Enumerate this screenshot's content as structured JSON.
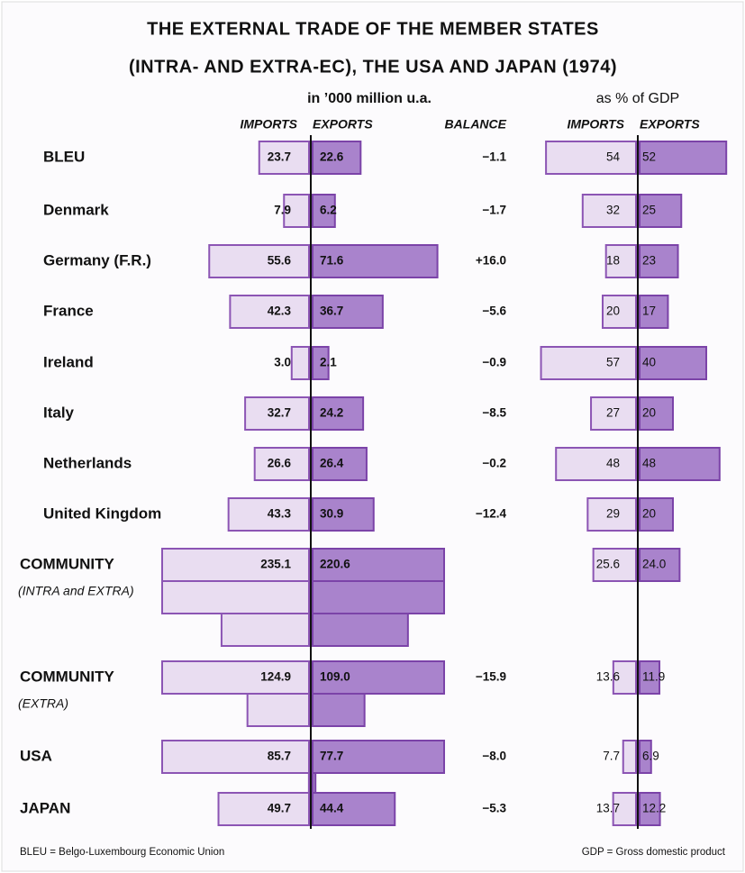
{
  "chart_data": {
    "type": "diverging-bar",
    "title": "THE EXTERNAL TRADE OF THE MEMBER STATES",
    "subtitle": "(INTRA- AND EXTRA-EC), THE USA AND JAPAN   (1974)",
    "unit_label": "in ’000 million u.a.",
    "gdp_label": "as % of GDP",
    "categories": [
      "BLEU",
      "Denmark",
      "Germany (F.R.)",
      "France",
      "Ireland",
      "Italy",
      "Netherlands",
      "United Kingdom",
      "COMMUNITY",
      "COMMUNITY",
      "USA",
      "JAPAN"
    ],
    "category_notes": [
      null,
      null,
      null,
      null,
      null,
      null,
      null,
      null,
      "(INTRA and EXTRA)",
      "(EXTRA)",
      null,
      null
    ],
    "series": [
      {
        "name": "IMPORTS",
        "color": "#e9ddf1",
        "values": [
          23.7,
          7.9,
          55.6,
          42.3,
          3.0,
          32.7,
          26.6,
          43.3,
          235.1,
          124.9,
          85.7,
          49.7
        ],
        "value_labels": [
          "23.7",
          "7.9",
          "55.6",
          "42.3",
          "3.0",
          "32.7",
          "26.6",
          "43.3",
          "235.1",
          "124.9",
          "85.7",
          "49.7"
        ]
      },
      {
        "name": "EXPORTS",
        "color": "#a983cc",
        "values": [
          22.6,
          6.2,
          71.6,
          36.7,
          2.1,
          24.2,
          26.4,
          30.9,
          220.6,
          109.0,
          77.7,
          44.4
        ],
        "value_labels": [
          "22.6",
          "6.2",
          "71.6",
          "36.7",
          "2.1",
          "24.2",
          "26.4",
          "30.9",
          "220.6",
          "109.0",
          "77.7",
          "44.4"
        ]
      },
      {
        "name": "BALANCE",
        "values": [
          -1.1,
          -1.7,
          16.0,
          -5.6,
          -0.9,
          -8.5,
          -0.2,
          -12.4,
          null,
          -15.9,
          -8.0,
          -5.3
        ],
        "value_labels": [
          "−1.1",
          "−1.7",
          "+16.0",
          "−5.6",
          "−0.9",
          "−8.5",
          "−0.2",
          "−12.4",
          null,
          "−15.9",
          "−8.0",
          "−5.3"
        ]
      },
      {
        "name": "IMPORTS",
        "color": "#e9ddf1",
        "values": [
          54,
          32,
          18,
          20,
          57,
          27,
          48,
          29,
          25.6,
          13.6,
          7.7,
          13.7
        ],
        "value_labels": [
          "54",
          "32",
          "18",
          "20",
          "57",
          "27",
          "48",
          "29",
          "25.6",
          "13.6",
          "7.7",
          "13.7"
        ]
      },
      {
        "name": "EXPORTS",
        "color": "#a983cc",
        "values": [
          52,
          25,
          23,
          17,
          40,
          20,
          48,
          20,
          24.0,
          11.9,
          6.9,
          12.2
        ],
        "value_labels": [
          "52",
          "25",
          "23",
          "17",
          "40",
          "20",
          "48",
          "20",
          "24.0",
          "11.9",
          "6.9",
          "12.2"
        ]
      }
    ],
    "footnotes": [
      "BLEU = Belgo-Luxembourg Economic Union",
      "GDP = Gross domestic product"
    ]
  }
}
